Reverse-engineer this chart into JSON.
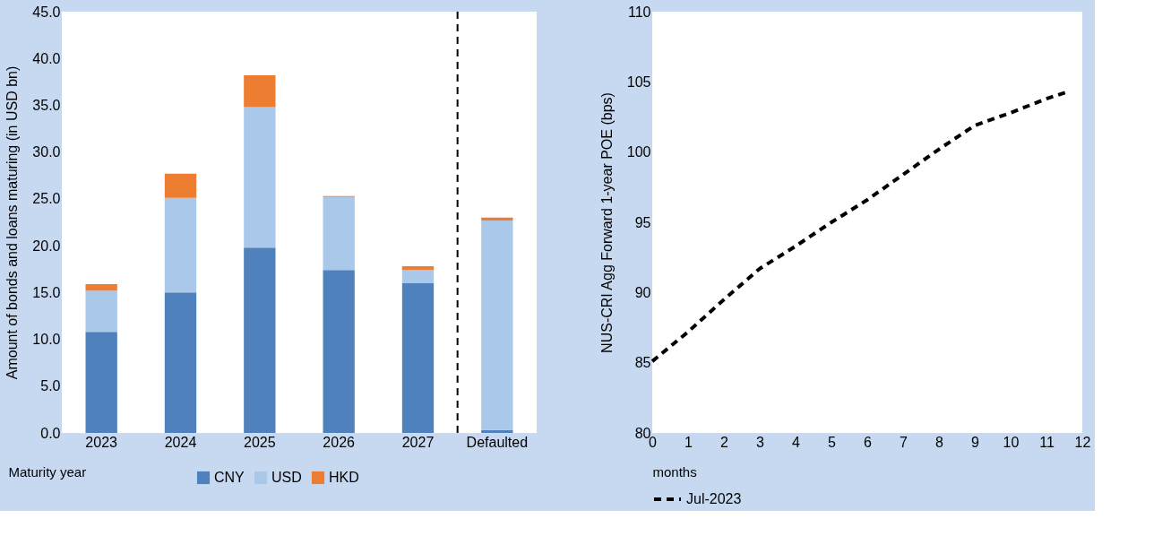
{
  "chart_data": [
    {
      "type": "bar",
      "stacked": true,
      "categories": [
        "2023",
        "2024",
        "2025",
        "2026",
        "2027",
        "Defaulted"
      ],
      "series": [
        {
          "name": "CNY",
          "color": "#4f81bd",
          "values": [
            10.8,
            15.0,
            19.8,
            17.4,
            16.0,
            0.3
          ]
        },
        {
          "name": "USD",
          "color": "#a9c8ea",
          "values": [
            4.4,
            10.1,
            15.0,
            7.8,
            1.4,
            22.4
          ]
        },
        {
          "name": "HKD",
          "color": "#ed7d31",
          "values": [
            0.7,
            2.6,
            3.4,
            0.1,
            0.4,
            0.3
          ]
        }
      ],
      "ylim": [
        0,
        45
      ],
      "yticks": [
        {
          "value": 0,
          "label": "0.0"
        },
        {
          "value": 5,
          "label": "5.0"
        },
        {
          "value": 10,
          "label": "10.0"
        },
        {
          "value": 15,
          "label": "15.0"
        },
        {
          "value": 20,
          "label": "20.0"
        },
        {
          "value": 25,
          "label": "25.0"
        },
        {
          "value": 30,
          "label": "30.0"
        },
        {
          "value": 35,
          "label": "35.0"
        },
        {
          "value": 40,
          "label": "40.0"
        },
        {
          "value": 45,
          "label": "45.0"
        }
      ],
      "ylabel": "Amount of bonds and loans maturing (in USD bn)",
      "xlabel": "Maturity year",
      "legend": "bottom",
      "grid": false
    },
    {
      "type": "line",
      "x": [
        0,
        1,
        2,
        3,
        4,
        5,
        6,
        7,
        8,
        9,
        10,
        11,
        11.6
      ],
      "series": [
        {
          "name": "Jul-2023",
          "color": "#000000",
          "values": [
            85.1,
            87.2,
            89.5,
            91.7,
            93.3,
            95.0,
            96.6,
            98.4,
            100.2,
            101.9,
            102.8,
            103.8,
            104.3
          ]
        }
      ],
      "xlim": [
        0,
        12
      ],
      "xticks": [
        0,
        1,
        2,
        3,
        4,
        5,
        6,
        7,
        8,
        9,
        10,
        11,
        12
      ],
      "ylim": [
        80,
        110
      ],
      "yticks": [
        80,
        85,
        90,
        95,
        100,
        105,
        110
      ],
      "ylabel": "NUS-CRI Agg Forward 1-year POE (bps)",
      "xlabel": "months",
      "line_style": "dashed",
      "marker": "none",
      "legend": "bottom",
      "grid": false
    }
  ]
}
